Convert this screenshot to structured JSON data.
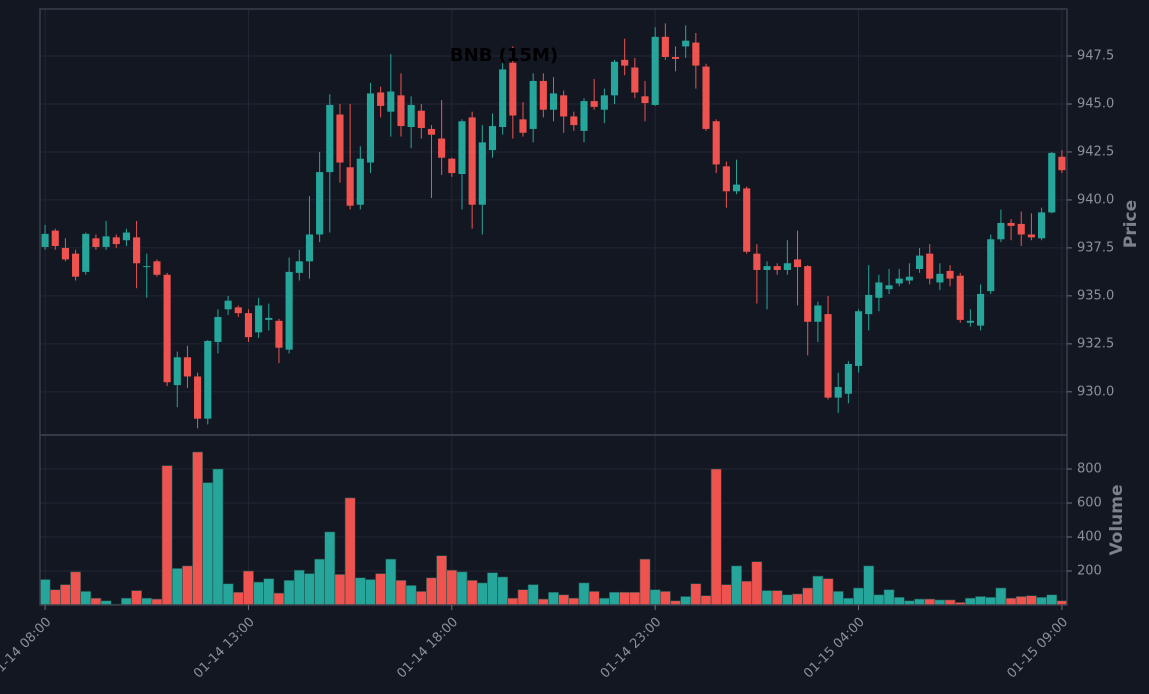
{
  "chart_data": [
    {
      "type": "candlestick",
      "title": "BNB (15M)",
      "ylabel": "Price",
      "up_color": "#26a69a",
      "down_color": "#ef5350",
      "grid": true,
      "categories": [
        "01-14 08:00",
        null,
        null,
        null,
        null,
        null,
        null,
        null,
        null,
        null,
        null,
        null,
        null,
        null,
        null,
        null,
        null,
        null,
        null,
        null,
        "01-14 13:00",
        null,
        null,
        null,
        null,
        null,
        null,
        null,
        null,
        null,
        null,
        null,
        null,
        null,
        null,
        null,
        null,
        null,
        null,
        null,
        "01-14 18:00",
        null,
        null,
        null,
        null,
        null,
        null,
        null,
        null,
        null,
        null,
        null,
        null,
        null,
        null,
        null,
        null,
        null,
        null,
        null,
        "01-14 23:00",
        null,
        null,
        null,
        null,
        null,
        null,
        null,
        null,
        null,
        null,
        null,
        null,
        null,
        null,
        null,
        null,
        null,
        null,
        null,
        "01-15 04:00",
        null,
        null,
        null,
        null,
        null,
        null,
        null,
        null,
        null,
        null,
        null,
        null,
        null,
        null,
        null,
        null,
        null,
        null,
        null,
        "01-15 09:00"
      ],
      "open": [
        937.55,
        938.4,
        937.5,
        937.2,
        936.25,
        938.0,
        937.55,
        938.05,
        937.9,
        938.05,
        936.5,
        936.8,
        936.1,
        930.35,
        931.8,
        930.8,
        928.6,
        932.6,
        934.3,
        934.4,
        934.1,
        933.1,
        933.75,
        933.7,
        932.2,
        936.2,
        936.8,
        938.2,
        941.45,
        944.45,
        941.7,
        939.75,
        941.95,
        945.6,
        944.6,
        945.45,
        943.8,
        944.65,
        943.7,
        943.2,
        942.15,
        941.35,
        944.3,
        939.75,
        942.6,
        943.8,
        947.15,
        944.2,
        943.7,
        946.2,
        944.7,
        945.45,
        944.35,
        943.6,
        945.15,
        944.7,
        945.45,
        947.3,
        946.9,
        945.4,
        944.95,
        948.5,
        947.45,
        948.0,
        948.2,
        946.95,
        944.1,
        941.75,
        940.45,
        940.6,
        937.2,
        936.35,
        936.55,
        936.35,
        936.9,
        936.55,
        933.65,
        934.05,
        929.7,
        929.9,
        931.35,
        934.05,
        934.9,
        935.35,
        935.65,
        935.8,
        936.4,
        937.2,
        935.7,
        936.3,
        936.05,
        933.6,
        933.45,
        935.25,
        937.95,
        938.8,
        938.75,
        938.2,
        938.0,
        939.35,
        942.25
      ],
      "high": [
        938.7,
        938.5,
        938.0,
        937.4,
        938.3,
        938.2,
        938.9,
        938.2,
        938.5,
        938.9,
        937.2,
        936.9,
        936.2,
        932.1,
        932.4,
        931.0,
        932.7,
        934.3,
        935.0,
        934.5,
        934.3,
        934.9,
        934.6,
        933.8,
        937.0,
        937.4,
        940.2,
        942.5,
        945.5,
        945.0,
        945.0,
        942.8,
        946.1,
        945.9,
        947.6,
        946.6,
        945.4,
        945.0,
        943.9,
        945.2,
        942.2,
        944.2,
        944.6,
        943.9,
        944.5,
        947.2,
        948.0,
        945.1,
        946.6,
        946.6,
        946.4,
        945.7,
        944.6,
        945.3,
        946.3,
        945.8,
        947.3,
        948.4,
        947.4,
        946.2,
        949.0,
        949.2,
        948.0,
        949.1,
        948.7,
        947.1,
        944.2,
        942.0,
        942.1,
        940.7,
        937.7,
        936.8,
        936.7,
        937.9,
        938.4,
        936.6,
        934.7,
        935.0,
        931.0,
        931.6,
        934.3,
        936.6,
        936.1,
        936.4,
        936.4,
        936.7,
        937.5,
        937.7,
        936.7,
        936.6,
        936.2,
        934.3,
        935.6,
        938.2,
        939.5,
        939.0,
        939.4,
        939.3,
        939.6,
        942.5,
        942.6
      ],
      "low": [
        937.4,
        937.4,
        936.8,
        935.8,
        936.1,
        937.4,
        937.4,
        937.5,
        937.6,
        935.4,
        934.9,
        936.0,
        930.3,
        929.2,
        930.2,
        928.1,
        928.3,
        932.0,
        934.0,
        933.9,
        932.6,
        932.8,
        933.2,
        931.5,
        932.0,
        935.8,
        935.9,
        937.8,
        938.3,
        940.9,
        939.5,
        939.5,
        941.4,
        944.3,
        943.3,
        943.3,
        942.7,
        943.2,
        940.1,
        941.3,
        941.2,
        939.5,
        938.5,
        938.2,
        942.2,
        943.4,
        943.2,
        943.3,
        943.0,
        944.3,
        944.1,
        943.5,
        943.6,
        943.0,
        944.7,
        944.0,
        945.0,
        946.5,
        945.3,
        944.1,
        944.9,
        947.3,
        946.7,
        947.4,
        945.8,
        943.6,
        941.4,
        939.6,
        940.3,
        937.2,
        934.6,
        934.3,
        936.1,
        936.1,
        934.5,
        931.9,
        932.6,
        929.6,
        928.9,
        929.4,
        931.0,
        933.2,
        934.2,
        935.1,
        935.5,
        935.6,
        936.2,
        935.6,
        935.3,
        935.5,
        933.6,
        933.4,
        933.2,
        935.1,
        937.8,
        937.9,
        937.6,
        937.9,
        937.9,
        939.3,
        941.4
      ],
      "close": [
        938.23,
        937.6,
        936.9,
        936.0,
        938.23,
        937.55,
        938.1,
        937.7,
        938.3,
        936.7,
        936.55,
        936.1,
        930.5,
        931.8,
        930.8,
        928.6,
        932.65,
        933.9,
        934.75,
        934.1,
        932.85,
        934.5,
        933.85,
        932.3,
        936.25,
        936.8,
        938.2,
        941.45,
        944.95,
        941.95,
        939.7,
        942.15,
        945.55,
        944.9,
        945.65,
        943.85,
        944.95,
        943.75,
        943.4,
        942.2,
        941.4,
        944.1,
        939.75,
        943.0,
        943.85,
        946.8,
        944.4,
        943.5,
        946.2,
        944.7,
        945.55,
        944.35,
        943.9,
        945.15,
        944.85,
        945.45,
        947.2,
        947.0,
        945.6,
        945.05,
        948.5,
        947.45,
        947.35,
        948.3,
        947.0,
        943.7,
        941.85,
        940.45,
        940.8,
        937.3,
        936.35,
        936.55,
        936.35,
        936.7,
        936.5,
        933.65,
        934.5,
        929.7,
        930.25,
        931.45,
        934.2,
        935.05,
        935.7,
        935.55,
        935.9,
        936.0,
        937.1,
        935.9,
        936.15,
        935.9,
        933.75,
        933.7,
        935.1,
        937.95,
        938.8,
        938.65,
        938.2,
        938.05,
        939.35,
        942.45,
        941.55
      ],
      "ylim": [
        927.75,
        949.95
      ],
      "yticks": [
        {
          "value": 930,
          "label": "930.0"
        },
        {
          "value": 932.5,
          "label": "932.5"
        },
        {
          "value": 935,
          "label": "935.0"
        },
        {
          "value": 937.5,
          "label": "937.5"
        },
        {
          "value": 940,
          "label": "940.0"
        },
        {
          "value": 942.5,
          "label": "942.5"
        },
        {
          "value": 945,
          "label": "945.0"
        },
        {
          "value": 947.5,
          "label": "947.5"
        }
      ]
    },
    {
      "type": "bar",
      "ylabel": "Volume",
      "grid": true,
      "values": [
        150,
        90,
        120,
        195,
        80,
        40,
        25,
        5,
        40,
        85,
        40,
        35,
        820,
        215,
        230,
        900,
        720,
        800,
        125,
        75,
        200,
        135,
        155,
        70,
        145,
        205,
        185,
        270,
        430,
        180,
        630,
        160,
        150,
        185,
        270,
        145,
        115,
        80,
        160,
        290,
        205,
        195,
        145,
        130,
        190,
        165,
        40,
        90,
        120,
        35,
        75,
        60,
        40,
        130,
        80,
        40,
        75,
        75,
        75,
        270,
        90,
        80,
        25,
        50,
        125,
        55,
        800,
        120,
        230,
        140,
        255,
        85,
        85,
        60,
        65,
        100,
        170,
        155,
        80,
        40,
        100,
        230,
        60,
        90,
        45,
        25,
        35,
        35,
        30,
        30,
        15,
        40,
        50,
        45,
        100,
        40,
        50,
        55,
        45,
        60,
        25
      ],
      "ylim": [
        0,
        1000
      ],
      "yticks": [
        200,
        400,
        600,
        800
      ]
    }
  ]
}
